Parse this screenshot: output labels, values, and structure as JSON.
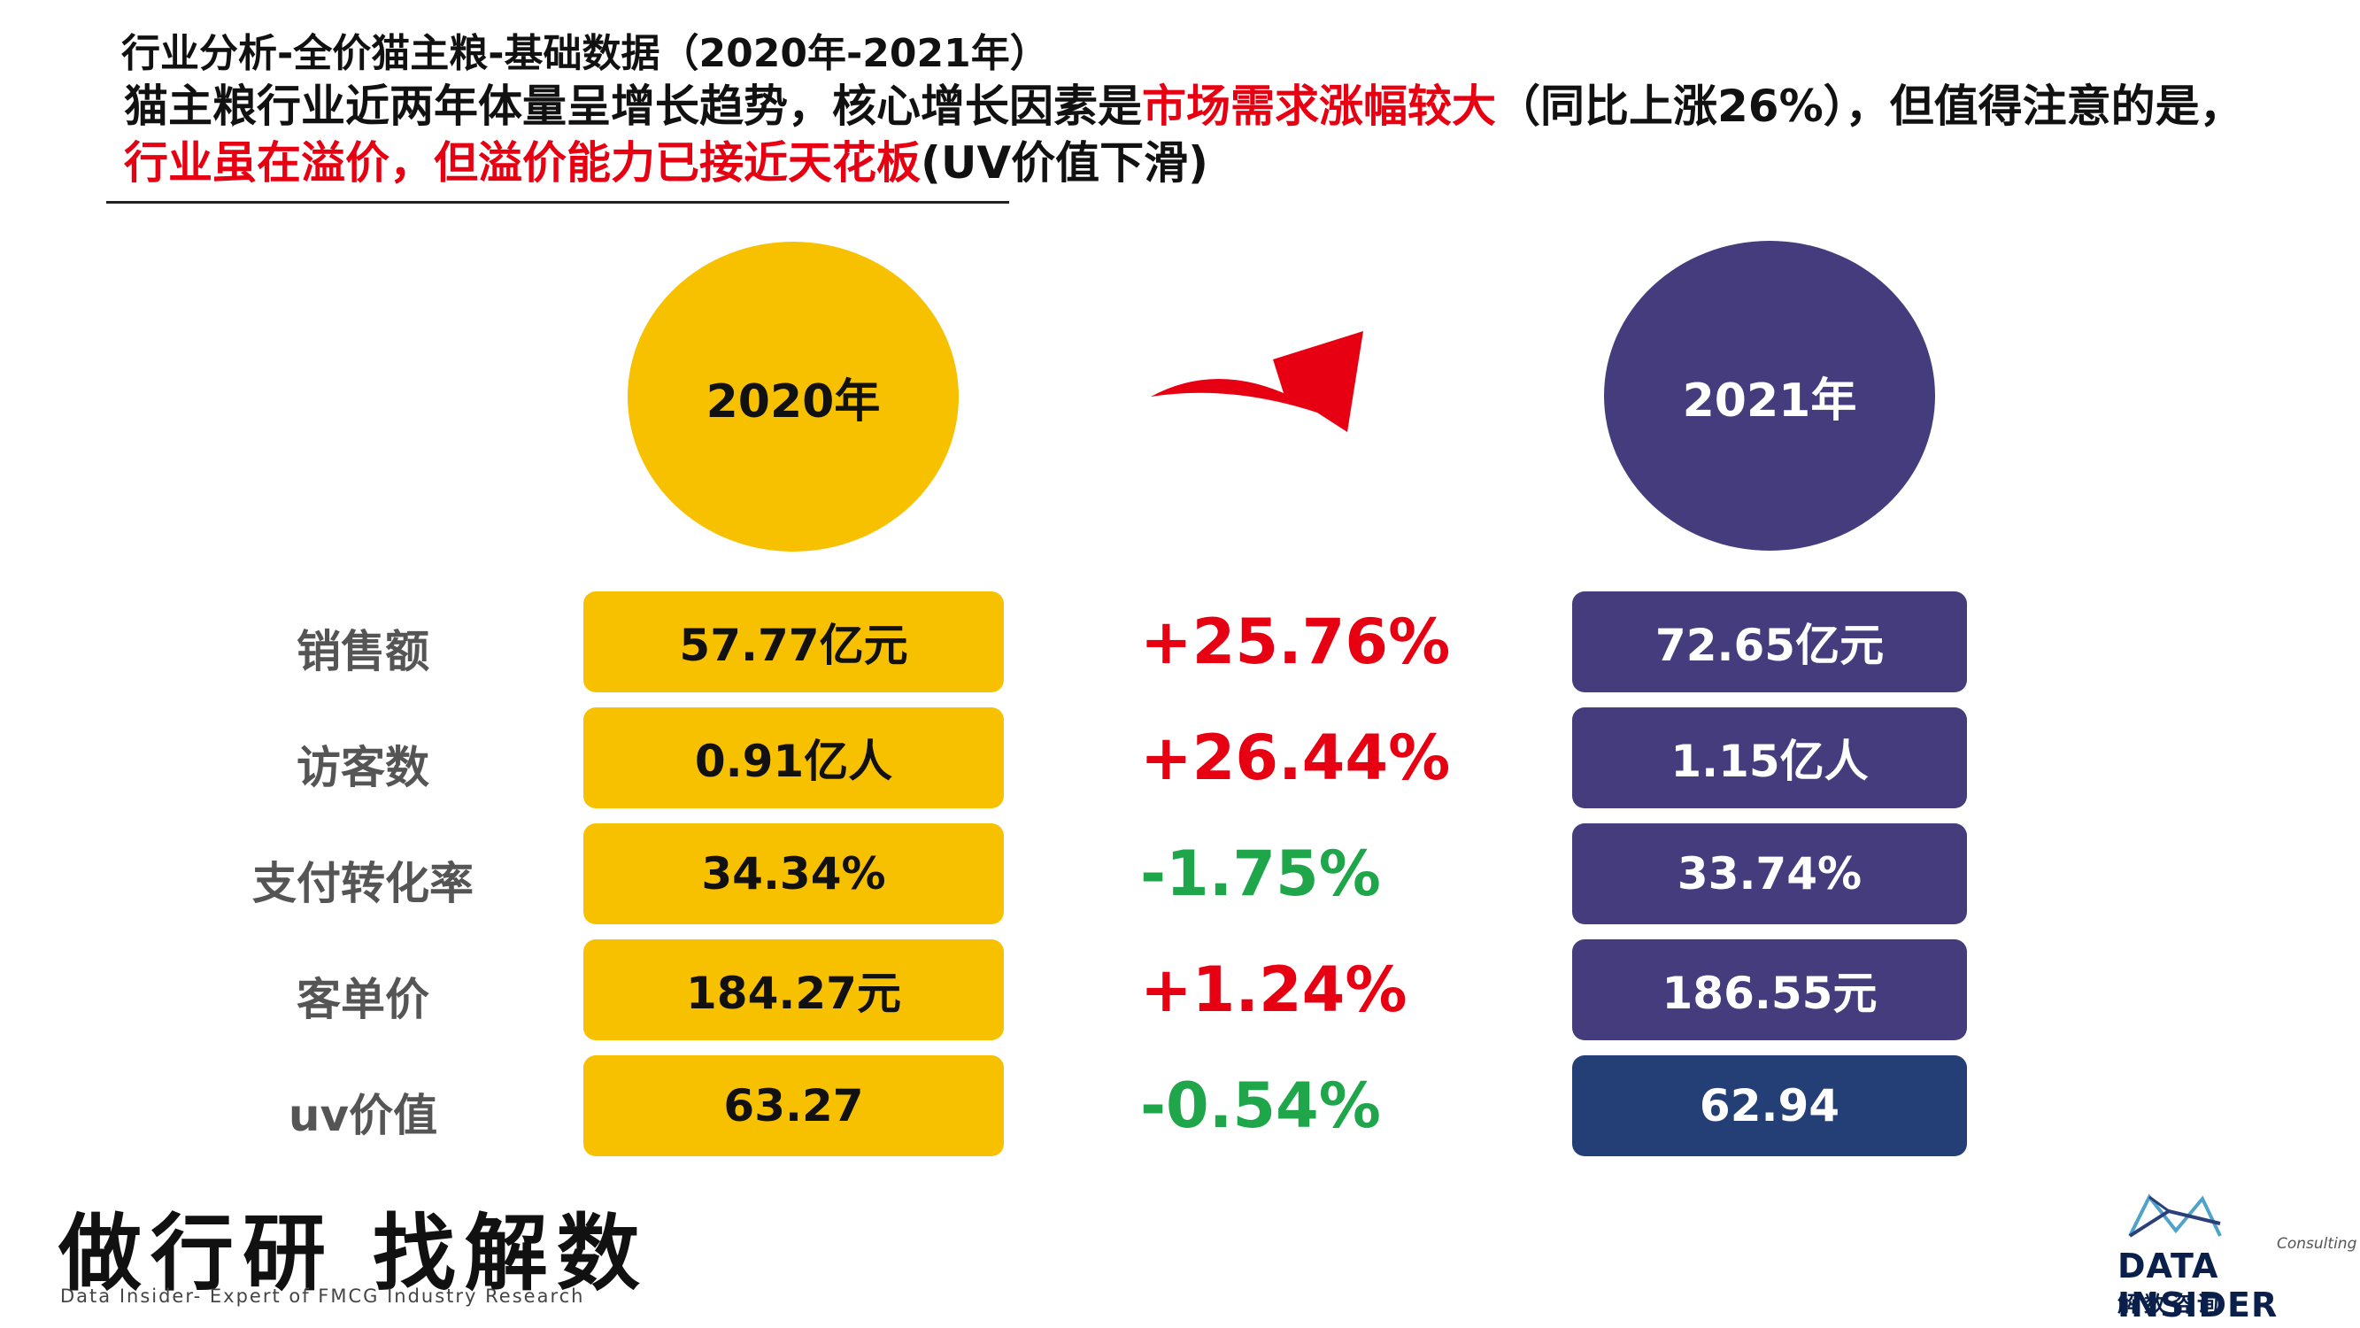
{
  "subtitle": "行业分析-全价猫主粮-基础数据（2020年-2021年）",
  "headline": {
    "part1": "猫主粮行业近两年体量呈增长趋势，核心增长因素是",
    "red1": "市场需求涨幅较大",
    "part2": "（同比上涨26%），但值得注意的是，",
    "red2": "行业虽在溢价，但溢价能力已接近天花板",
    "part3": "(UV价值下滑)"
  },
  "years": {
    "left": "2020年",
    "right": "2021年"
  },
  "rows": [
    {
      "label": "销售额",
      "v2020": "57.77亿元",
      "change": "+25.76%",
      "v2021": "72.65亿元"
    },
    {
      "label": "访客数",
      "v2020": "0.91亿人",
      "change": "+26.44%",
      "v2021": "1.15亿人"
    },
    {
      "label": "支付转化率",
      "v2020": "34.34%",
      "change": "-1.75%",
      "v2021": "33.74%"
    },
    {
      "label": "客单价",
      "v2020": "184.27元",
      "change": "+1.24%",
      "v2021": "186.55元"
    },
    {
      "label": "uv价值",
      "v2020": "63.27",
      "change": "-0.54%",
      "v2021": "62.94"
    }
  ],
  "colors": {
    "yellow": "#f8c100",
    "purple": "#443c7c",
    "navy": "#233f76",
    "up": "#e60012",
    "down": "#1fa64a"
  },
  "footer": {
    "slogan": "做行研 找解数",
    "tagline": "Data Insider- Expert of FMCG Industry Research",
    "logo_consulting": "Consulting",
    "logo_name": "DATA INSIDER",
    "logo_cn": "解数咨询"
  }
}
